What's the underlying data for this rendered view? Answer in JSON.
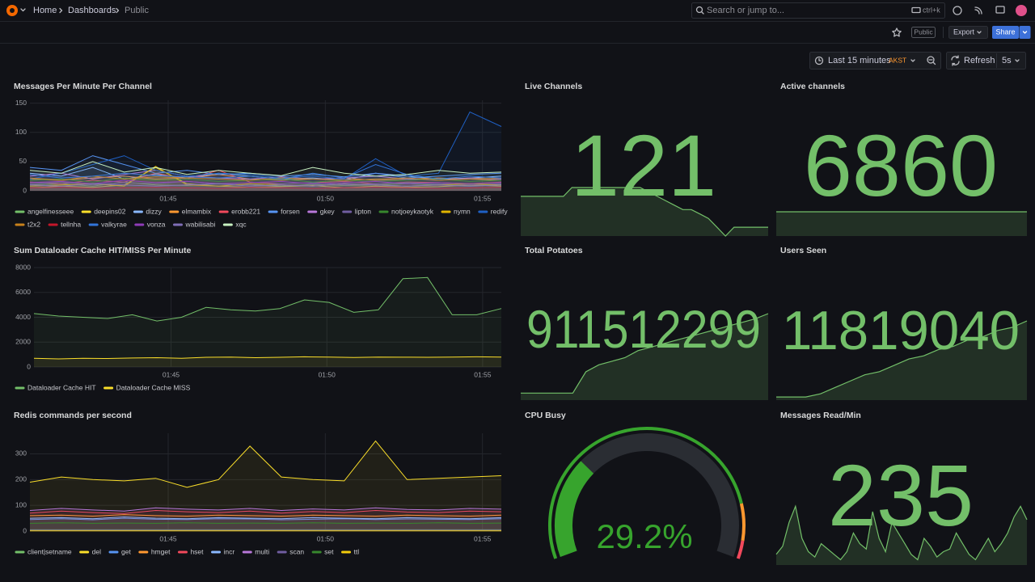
{
  "nav": {
    "breadcrumbs": [
      "Home",
      "Dashboards",
      "Public"
    ],
    "search": "Search or jump to...",
    "shortcut": "ctrl+k"
  },
  "toolbar": {
    "public": "Public",
    "export": "Export",
    "share": "Share",
    "time_range": "Last 15 minutes",
    "timezone": "AKST",
    "refresh": "Refresh",
    "interval": "5s"
  },
  "panels": [
    {
      "type": "timeseries",
      "title": "Messages Per Minute Per Channel",
      "xlim": [
        0,
        15
      ],
      "xticks": [
        {
          "value": 4.4,
          "label": "01:45"
        },
        {
          "value": 9.4,
          "label": "01:50"
        },
        {
          "value": 14.4,
          "label": "01:55"
        }
      ],
      "ylim": [
        0,
        155
      ],
      "yticks": [
        0,
        50,
        100,
        150
      ],
      "series": [
        {
          "name": "angelfinesseee",
          "color": "#73bf69",
          "values": [
            10,
            12,
            8,
            15,
            10,
            9,
            12,
            10,
            8,
            11,
            9,
            10,
            12,
            10,
            9,
            11
          ]
        },
        {
          "name": "deepins02",
          "color": "#fade2a",
          "values": [
            5,
            8,
            6,
            10,
            40,
            12,
            8,
            6,
            7,
            9,
            5,
            8,
            6,
            7,
            10,
            8
          ]
        },
        {
          "name": "dizzy",
          "color": "#8ab8ff",
          "values": [
            30,
            25,
            40,
            20,
            28,
            22,
            30,
            25,
            20,
            22,
            18,
            30,
            25,
            20,
            22,
            25
          ]
        },
        {
          "name": "elmambix",
          "color": "#ff9830",
          "values": [
            20,
            18,
            22,
            25,
            20,
            22,
            28,
            20,
            18,
            20,
            22,
            18,
            20,
            22,
            20,
            18
          ]
        },
        {
          "name": "erobb221",
          "color": "#f2495c",
          "values": [
            15,
            12,
            18,
            15,
            30,
            20,
            35,
            15,
            12,
            14,
            16,
            12,
            15,
            14,
            12,
            15
          ]
        },
        {
          "name": "forsen",
          "color": "#5794f2",
          "values": [
            40,
            35,
            60,
            45,
            30,
            35,
            28,
            30,
            25,
            28,
            24,
            30,
            22,
            25,
            28,
            30
          ]
        },
        {
          "name": "gkey",
          "color": "#b877d9",
          "values": [
            25,
            30,
            20,
            28,
            35,
            25,
            22,
            20,
            24,
            20,
            22,
            25,
            20,
            18,
            22,
            20
          ]
        },
        {
          "name": "lipton",
          "color": "#705da0",
          "values": [
            12,
            15,
            10,
            14,
            12,
            16,
            12,
            10,
            12,
            14,
            10,
            12,
            14,
            12,
            10,
            12
          ]
        },
        {
          "name": "notjoeykaotyk",
          "color": "#37872d",
          "values": [
            18,
            20,
            15,
            22,
            18,
            20,
            16,
            18,
            20,
            15,
            18,
            16,
            18,
            20,
            16,
            18
          ]
        },
        {
          "name": "nymn",
          "color": "#e0b400",
          "values": [
            8,
            10,
            12,
            8,
            42,
            10,
            8,
            12,
            10,
            8,
            12,
            10,
            8,
            10,
            12,
            10
          ]
        },
        {
          "name": "redify",
          "color": "#1f60c4",
          "values": [
            20,
            30,
            45,
            60,
            35,
            25,
            30,
            28,
            22,
            25,
            20,
            55,
            25,
            30,
            135,
            110
          ]
        },
        {
          "name": "t2x2",
          "color": "#c8811b",
          "values": [
            22,
            18,
            25,
            20,
            24,
            22,
            20,
            18,
            22,
            20,
            18,
            20,
            22,
            18,
            20,
            22
          ]
        },
        {
          "name": "tellnha",
          "color": "#c4162a",
          "values": [
            5,
            6,
            4,
            5,
            6,
            5,
            4,
            6,
            5,
            4,
            5,
            6,
            5,
            4,
            5,
            6
          ]
        },
        {
          "name": "valkyrae",
          "color": "#3274d9",
          "values": [
            28,
            22,
            25,
            30,
            26,
            24,
            22,
            25,
            20,
            30,
            22,
            45,
            28,
            20,
            25,
            22
          ]
        },
        {
          "name": "vonza",
          "color": "#8f3bb8",
          "values": [
            14,
            16,
            12,
            18,
            14,
            16,
            12,
            14,
            16,
            12,
            14,
            16,
            12,
            14,
            12,
            14
          ]
        },
        {
          "name": "wabilisabi",
          "color": "#806eb7",
          "values": [
            10,
            8,
            12,
            10,
            8,
            10,
            12,
            8,
            10,
            8,
            12,
            10,
            8,
            10,
            8,
            10
          ]
        },
        {
          "name": "xqc",
          "color": "#c8f2c2",
          "values": [
            35,
            30,
            50,
            32,
            40,
            28,
            35,
            30,
            26,
            40,
            30,
            25,
            28,
            35,
            30,
            32
          ]
        }
      ]
    },
    {
      "type": "stat",
      "title": "Live Channels",
      "value": 121,
      "color": "#73bf69",
      "sparkline": [
        128,
        128,
        128,
        128,
        128,
        128,
        130,
        130,
        130,
        130,
        130,
        130,
        130,
        130,
        130,
        129,
        128,
        127,
        126,
        125,
        125,
        124,
        123,
        121,
        119,
        121,
        121,
        121,
        121,
        121
      ],
      "sparkline_ylim": [
        119,
        130
      ]
    },
    {
      "type": "stat",
      "title": "Active channels",
      "value": 6860,
      "color": "#73bf69",
      "sparkline": [
        6860,
        6860,
        6860,
        6860,
        6860,
        6860,
        6860,
        6860,
        6860,
        6860,
        6860,
        6860
      ],
      "sparkline_ylim": [
        6830,
        6890
      ]
    },
    {
      "type": "timeseries",
      "title": "Sum Dataloader Cache HIT/MISS Per Minute",
      "xlim": [
        0,
        15
      ],
      "xticks": [
        {
          "value": 4.4,
          "label": "01:45"
        },
        {
          "value": 9.4,
          "label": "01:50"
        },
        {
          "value": 14.4,
          "label": "01:55"
        }
      ],
      "ylim": [
        0,
        8000
      ],
      "yticks": [
        0,
        2000,
        4000,
        6000,
        8000
      ],
      "series": [
        {
          "name": "Dataloader Cache HIT",
          "color": "#73bf69",
          "values": [
            4300,
            4100,
            4000,
            3900,
            4200,
            3700,
            4000,
            4800,
            4600,
            4500,
            4700,
            5400,
            5200,
            4400,
            4600,
            7100,
            7200,
            4200,
            4200,
            4700
          ]
        },
        {
          "name": "Dataloader Cache MISS",
          "color": "#fade2a",
          "values": [
            700,
            650,
            700,
            680,
            720,
            750,
            700,
            780,
            800,
            750,
            780,
            820,
            800,
            760,
            800,
            790,
            780,
            800,
            820,
            800
          ]
        }
      ]
    },
    {
      "type": "stat",
      "title": "Total Potatoes",
      "value": 911512299,
      "color": "#73bf69",
      "sparkline": [
        911400000,
        911400000,
        911400000,
        911400000,
        911400000,
        911430000,
        911440000,
        911445000,
        911450000,
        911460000,
        911465000,
        911470000,
        911475000,
        911480000,
        911485000,
        911490000,
        911495000,
        911500000,
        911505000,
        911512299
      ],
      "sparkline_ylim": [
        911390000,
        911512299
      ]
    },
    {
      "type": "stat",
      "title": "Users Seen",
      "value": 11819040,
      "color": "#73bf69",
      "sparkline": [
        11795000,
        11795000,
        11795000,
        11796000,
        11798000,
        11800000,
        11802000,
        11803000,
        11805000,
        11807000,
        11808000,
        11810000,
        11811000,
        11813000,
        11814000,
        11816000,
        11817000,
        11819040
      ],
      "sparkline_ylim": [
        11794000,
        11819040
      ]
    },
    {
      "type": "timeseries",
      "title": "Redis commands per second",
      "xlim": [
        0,
        15
      ],
      "xticks": [
        {
          "value": 4.4,
          "label": "01:45"
        },
        {
          "value": 9.4,
          "label": "01:50"
        },
        {
          "value": 14.4,
          "label": "01:55"
        }
      ],
      "ylim": [
        0,
        380
      ],
      "yticks": [
        0,
        100,
        200,
        300
      ],
      "series": [
        {
          "name": "client|setname",
          "color": "#73bf69",
          "values": [
            5,
            5,
            5,
            5,
            5,
            5,
            5,
            5,
            5,
            5,
            5,
            5,
            5,
            5,
            5,
            5
          ]
        },
        {
          "name": "del",
          "color": "#fade2a",
          "values": [
            190,
            210,
            200,
            195,
            205,
            170,
            200,
            330,
            210,
            200,
            195,
            350,
            200,
            205,
            210,
            215
          ]
        },
        {
          "name": "get",
          "color": "#5794f2",
          "values": [
            45,
            48,
            44,
            50,
            46,
            45,
            48,
            47,
            44,
            46,
            48,
            45,
            47,
            46,
            45,
            48
          ]
        },
        {
          "name": "hmget",
          "color": "#ff9830",
          "values": [
            60,
            62,
            58,
            64,
            60,
            58,
            62,
            60,
            58,
            62,
            60,
            58,
            62,
            60,
            58,
            62
          ]
        },
        {
          "name": "hset",
          "color": "#f2495c",
          "values": [
            70,
            78,
            72,
            68,
            80,
            75,
            72,
            78,
            70,
            76,
            72,
            80,
            74,
            72,
            78,
            75
          ]
        },
        {
          "name": "incr",
          "color": "#8ab8ff",
          "values": [
            50,
            52,
            48,
            55,
            50,
            48,
            52,
            50,
            48,
            52,
            50,
            48,
            52,
            50,
            48,
            52
          ]
        },
        {
          "name": "multi",
          "color": "#b877d9",
          "values": [
            80,
            88,
            82,
            78,
            90,
            85,
            82,
            88,
            80,
            86,
            82,
            90,
            84,
            82,
            88,
            85
          ]
        },
        {
          "name": "scan",
          "color": "#705da0",
          "values": [
            3,
            3,
            3,
            3,
            3,
            3,
            3,
            3,
            3,
            3,
            3,
            3,
            3,
            3,
            3,
            3
          ]
        },
        {
          "name": "set",
          "color": "#37872d",
          "values": [
            30,
            32,
            30,
            31,
            30,
            32,
            30,
            31,
            30,
            32,
            30,
            31,
            30,
            32,
            30,
            31
          ]
        },
        {
          "name": "ttl",
          "color": "#f2cc0c",
          "values": [
            1,
            1,
            1,
            1,
            1,
            1,
            1,
            1,
            1,
            1,
            1,
            1,
            1,
            1,
            1,
            1
          ]
        }
      ]
    },
    {
      "type": "gauge",
      "title": "CPU Busy",
      "value": 29.2,
      "value_label": "29.2%",
      "min": 0,
      "max": 100,
      "color": "#37a42d",
      "thresholds": [
        {
          "value": 0,
          "color": "#37a42d"
        },
        {
          "value": 85,
          "color": "#ff9830"
        },
        {
          "value": 95,
          "color": "#f2495c"
        }
      ]
    },
    {
      "type": "stat",
      "title": "Messages Read/Min",
      "value": 235,
      "color": "#73bf69",
      "sparkline": [
        170,
        185,
        230,
        260,
        200,
        175,
        165,
        190,
        180,
        170,
        160,
        175,
        210,
        190,
        180,
        250,
        200,
        175,
        230,
        210,
        190,
        170,
        160,
        200,
        185,
        165,
        175,
        180,
        210,
        190,
        170,
        160,
        180,
        200,
        175,
        190,
        210,
        240,
        260,
        235
      ],
      "sparkline_ylim": [
        150,
        300
      ]
    }
  ]
}
